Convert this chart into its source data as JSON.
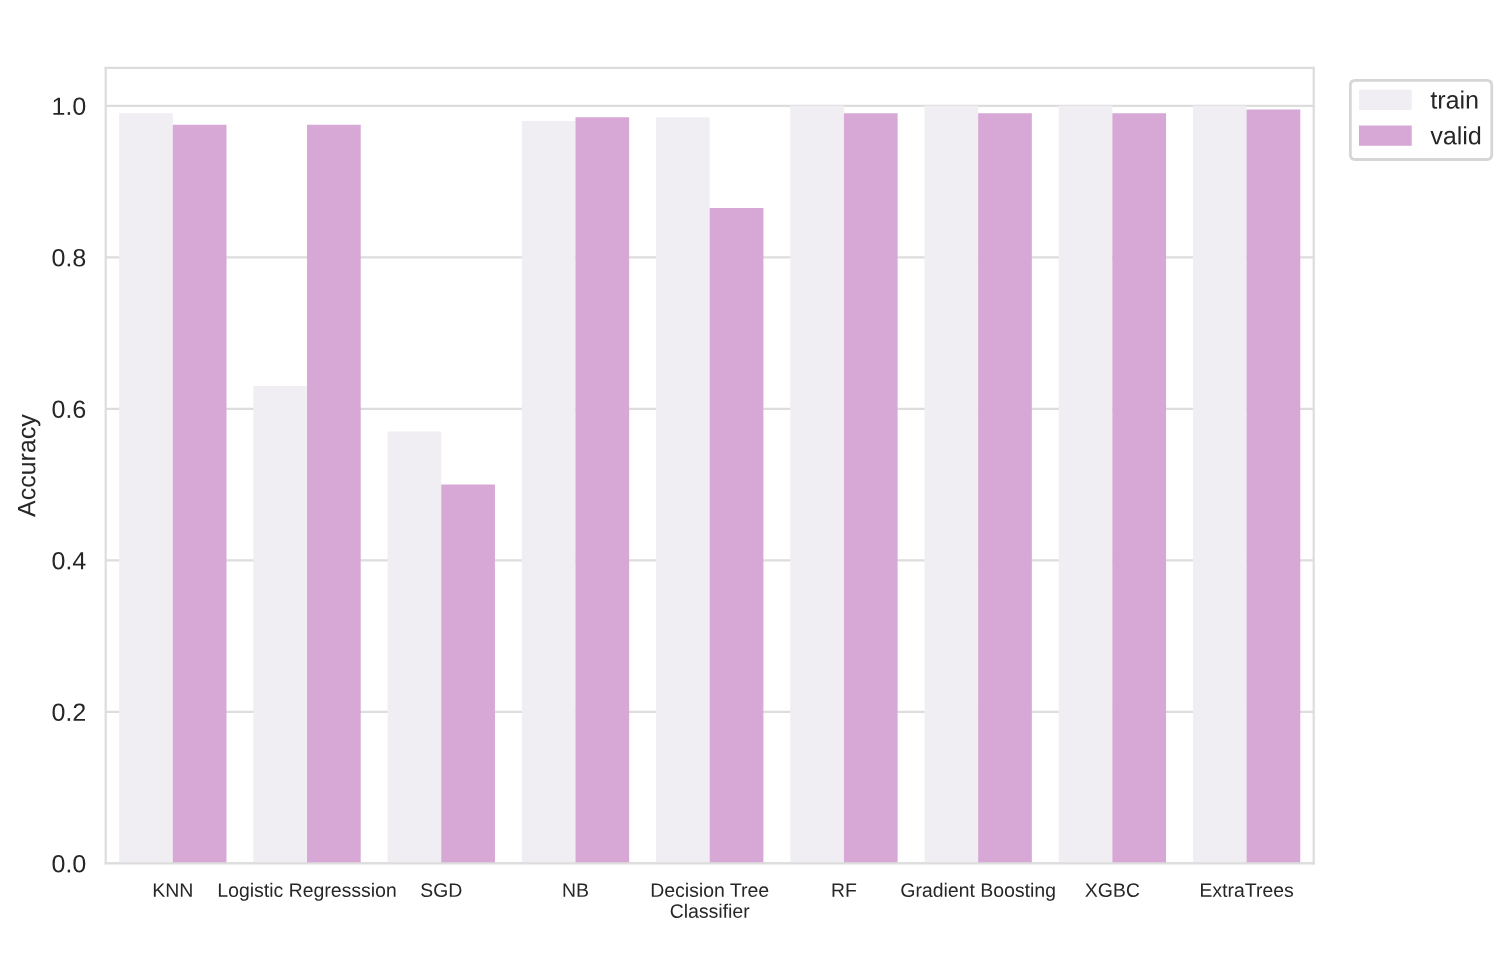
{
  "chart_data": {
    "type": "bar",
    "ylabel": "Accuracy",
    "categories": [
      "KNN",
      "Logistic Regresssion",
      "SGD",
      "NB",
      "Decision Tree\nClassifier",
      "RF",
      "Gradient Boosting",
      "XGBC",
      "ExtraTrees"
    ],
    "series": [
      {
        "name": "train",
        "color": "#f0eef2",
        "values": [
          0.99,
          0.63,
          0.57,
          0.98,
          0.985,
          1.0,
          1.0,
          1.0,
          1.0
        ]
      },
      {
        "name": "valid",
        "color": "#d7a7d6",
        "values": [
          0.975,
          0.975,
          0.5,
          0.985,
          0.865,
          0.99,
          0.99,
          0.99,
          0.995
        ]
      }
    ],
    "ylim": [
      0,
      1.05
    ],
    "yticks": [
      {
        "value": 0,
        "label": "0.0"
      },
      0.2,
      0.4,
      0.6,
      0.8,
      {
        "value": 1,
        "label": "1.0"
      }
    ],
    "grid": "y",
    "legend": "top right"
  }
}
